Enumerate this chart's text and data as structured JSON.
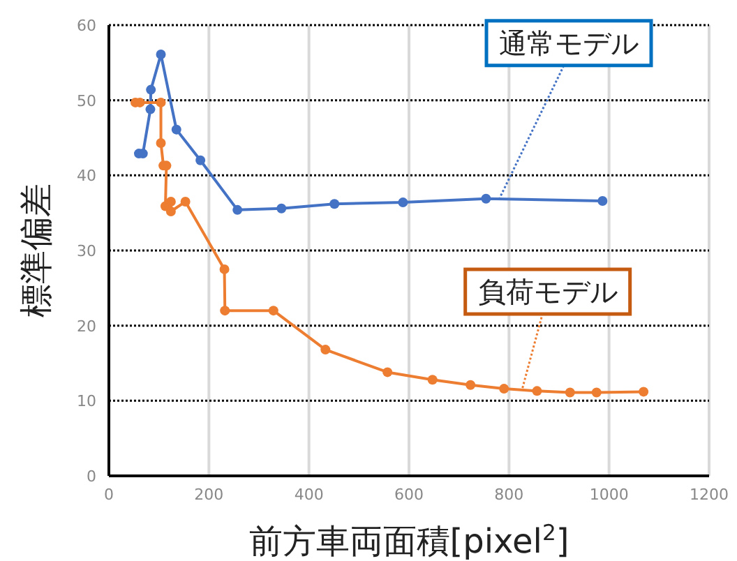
{
  "chart_data": {
    "type": "line",
    "xlabel": "前方車両面積[pixel$^{2}$]",
    "ylabel": "標準偏差",
    "xlim": [
      0,
      1200
    ],
    "xticks": [
      0,
      200,
      400,
      600,
      800,
      1000,
      1200
    ],
    "ylim": [
      0,
      60
    ],
    "yticks": [
      0,
      10,
      20,
      30,
      40,
      50,
      60
    ],
    "grid": true,
    "marker": "circle",
    "line_style": "solid",
    "series": [
      {
        "color": "#4472c4",
        "x": [
          60,
          68,
          83,
          84,
          104,
          135,
          183,
          257,
          345,
          451,
          588,
          754,
          987
        ],
        "values": [
          42.9,
          42.9,
          48.8,
          51.4,
          56.1,
          46.1,
          42.0,
          35.4,
          35.6,
          36.2,
          36.4,
          36.9,
          36.6
        ]
      },
      {
        "color": "#ed7d31",
        "x": [
          53,
          62,
          104,
          104,
          109,
          115,
          113,
          124,
          124,
          153,
          231,
          232,
          329,
          433,
          557,
          647,
          723,
          790,
          856,
          922,
          975,
          1069
        ],
        "values": [
          49.7,
          49.7,
          49.7,
          44.3,
          41.3,
          41.3,
          35.9,
          36.5,
          35.2,
          36.5,
          27.5,
          22.0,
          22.0,
          16.8,
          13.8,
          12.8,
          12.1,
          11.6,
          11.3,
          11.1,
          11.1,
          11.2
        ]
      }
    ],
    "annotations": [
      {
        "text": "通常モデル",
        "x": 780,
        "y": 36.8
      },
      {
        "text": "負荷モデル",
        "x": 827,
        "y": 11.7
      }
    ]
  }
}
